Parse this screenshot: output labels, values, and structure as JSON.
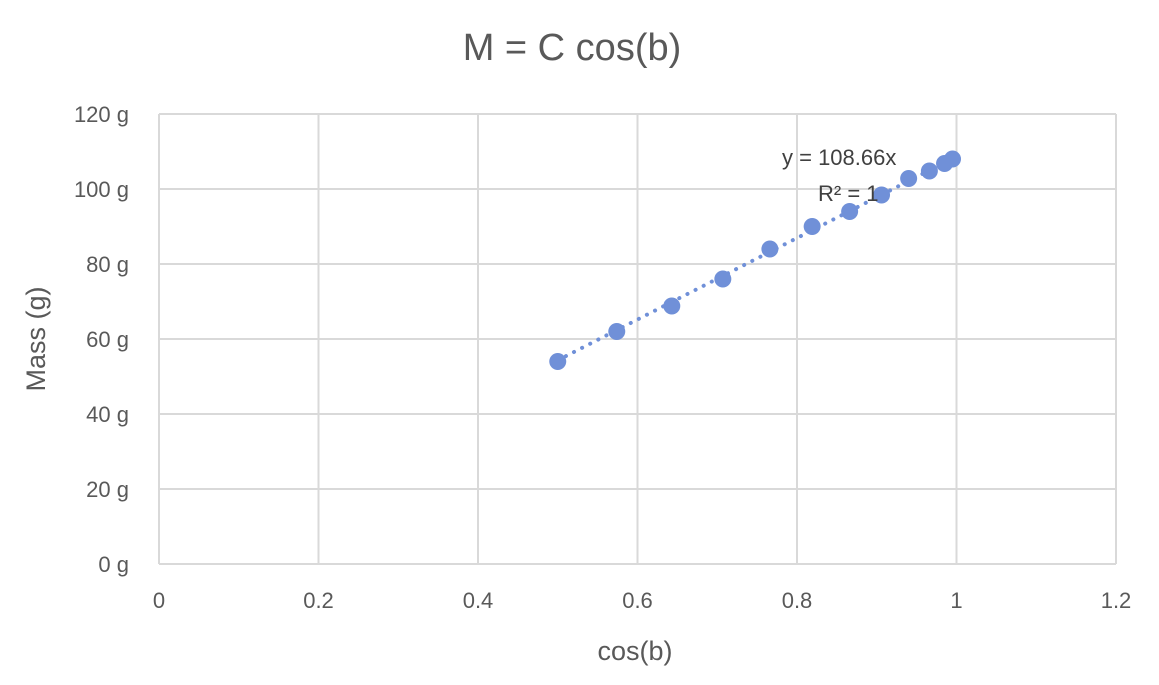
{
  "chart_data": {
    "type": "scatter",
    "title": "M = C cos(b)",
    "xlabel": "cos(b)",
    "ylabel": "Mass (g)",
    "xlim": [
      0,
      1.2
    ],
    "ylim": [
      0,
      120
    ],
    "x_ticks": [
      0,
      0.2,
      0.4,
      0.6,
      0.8,
      1,
      1.2
    ],
    "x_tick_labels": [
      "0",
      "0.2",
      "0.4",
      "0.6",
      "0.8",
      "1",
      "1.2"
    ],
    "y_ticks": [
      0,
      20,
      40,
      60,
      80,
      100,
      120
    ],
    "y_tick_labels": [
      "0 g",
      "20 g",
      "40 g",
      "60 g",
      "80 g",
      "100 g",
      "120 g"
    ],
    "grid": true,
    "legend": "none",
    "series": [
      {
        "points": [
          {
            "x": 0.5,
            "y": 54
          },
          {
            "x": 0.574,
            "y": 62
          },
          {
            "x": 0.643,
            "y": 68.8
          },
          {
            "x": 0.707,
            "y": 76
          },
          {
            "x": 0.766,
            "y": 84
          },
          {
            "x": 0.819,
            "y": 90
          },
          {
            "x": 0.866,
            "y": 94
          },
          {
            "x": 0.906,
            "y": 98.4
          },
          {
            "x": 0.94,
            "y": 102.8
          },
          {
            "x": 0.966,
            "y": 104.8
          },
          {
            "x": 0.985,
            "y": 106.8
          },
          {
            "x": 0.995,
            "y": 108
          }
        ],
        "color": "#7090d8"
      }
    ],
    "trendline": {
      "type": "linear",
      "slope": 108.66,
      "x_range": [
        0.5,
        0.995
      ],
      "color": "#7090d8",
      "style": "dotted",
      "equation": "y = 108.66x",
      "r_squared": "R² = 1"
    },
    "colors": {
      "grid": "#d9d9d9",
      "text": "#595959"
    }
  }
}
